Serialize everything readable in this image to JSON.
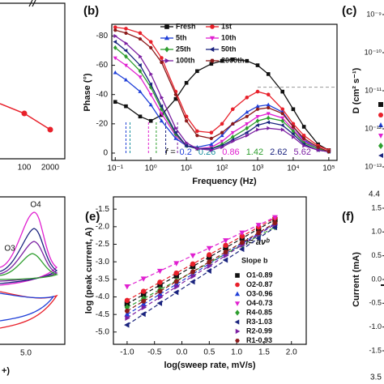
{
  "chart_data": [
    {
      "type": "line",
      "label": "(b)",
      "x_label": "Frequency (Hz)",
      "y_label": "Phase (°)",
      "xlog": true,
      "x": [
        0.1,
        0.2,
        0.5,
        1,
        2,
        5,
        10,
        20,
        50,
        100,
        200,
        500,
        1000,
        2000,
        5000,
        10000,
        20000,
        50000,
        100000
      ],
      "xlim": [
        0.08,
        170000
      ],
      "xticks": [
        {
          "value": 0.1,
          "label": "10⁻¹"
        },
        {
          "value": 1,
          "label": "10⁰"
        },
        {
          "value": 10,
          "label": "10¹"
        },
        {
          "value": 100,
          "label": "10²"
        },
        {
          "value": 1000,
          "label": "10³"
        },
        {
          "value": 10000,
          "label": "10⁴"
        },
        {
          "value": 100000,
          "label": "10⁵"
        }
      ],
      "ylim": [
        5,
        -88
      ],
      "yticks": [
        -80,
        -60,
        -40,
        -20,
        0
      ],
      "reference_line": -45,
      "series": [
        {
          "name": "Fresh",
          "color": "#111111",
          "marker": "square",
          "values": [
            -35,
            -32,
            -25,
            -22,
            -26,
            -37,
            -48,
            -56,
            -61,
            -63,
            -64,
            -63,
            -60,
            -54,
            -42,
            -30,
            -18,
            -6,
            -2
          ]
        },
        {
          "name": "1st",
          "color": "#e8202a",
          "marker": "circle",
          "values": [
            -86,
            -85,
            -82,
            -76,
            -65,
            -42,
            -25,
            -15,
            -14,
            -20,
            -30,
            -38,
            -42,
            -40,
            -30,
            -20,
            -12,
            -5,
            -2
          ]
        },
        {
          "name": "5th",
          "color": "#1f3fd8",
          "marker": "up",
          "values": [
            -55,
            -50,
            -42,
            -33,
            -22,
            -10,
            -5,
            -4,
            -6,
            -12,
            -20,
            -28,
            -32,
            -33,
            -28,
            -18,
            -9,
            -3,
            -1
          ]
        },
        {
          "name": "10th",
          "color": "#e020d0",
          "marker": "down",
          "values": [
            -65,
            -60,
            -52,
            -40,
            -27,
            -12,
            -5,
            -3,
            -4,
            -8,
            -14,
            -20,
            -25,
            -27,
            -24,
            -16,
            -8,
            -3,
            -1
          ]
        },
        {
          "name": "25th",
          "color": "#2e9e2e",
          "marker": "diamond",
          "values": [
            -72,
            -66,
            -56,
            -45,
            -30,
            -13,
            -5,
            -3,
            -3,
            -6,
            -11,
            -17,
            -22,
            -24,
            -22,
            -15,
            -7,
            -3,
            -1
          ]
        },
        {
          "name": "50th",
          "color": "#1a237e",
          "marker": "left",
          "values": [
            -76,
            -70,
            -60,
            -47,
            -32,
            -14,
            -5,
            -3,
            -3,
            -5,
            -9,
            -14,
            -19,
            -21,
            -19,
            -13,
            -6,
            -2,
            -1
          ]
        },
        {
          "name": "100th",
          "color": "#7b1fa2",
          "marker": "right",
          "values": [
            -80,
            -75,
            -66,
            -54,
            -38,
            -17,
            -7,
            -3,
            -2,
            -4,
            -8,
            -12,
            -16,
            -17,
            -16,
            -11,
            -5,
            -2,
            -1
          ]
        },
        {
          "name": "2000th",
          "color": "#8b1a1a",
          "marker": "hexagon",
          "values": [
            -84,
            -82,
            -78,
            -72,
            -62,
            -40,
            -22,
            -12,
            -10,
            -14,
            -20,
            -25,
            -30,
            -31,
            -27,
            -18,
            -10,
            -4,
            -1
          ]
        }
      ],
      "annotation": {
        "prefix": "f =",
        "values": [
          0.2,
          0.26,
          0.86,
          1.42,
          2.62,
          5.62
        ],
        "colors": [
          "#1f3fd8",
          "#1a8f9e",
          "#e020d0",
          "#2e9e2e",
          "#1a237e",
          "#7b1fa2"
        ]
      }
    },
    {
      "type": "scatter",
      "label": "(e)",
      "x_label": "log(sweep rate, mV/s)",
      "y_label": "log (peak current, A)",
      "formula": "i= aνᵇ",
      "legend_title": "Slope b",
      "x": [
        -1.0,
        -0.7,
        -0.4,
        -0.1,
        0.2,
        0.5,
        0.8,
        1.1,
        1.4,
        1.7
      ],
      "xlim": [
        -1.25,
        2.27
      ],
      "xticks": [
        {
          "value": -1,
          "label": "-1.0"
        },
        -0.5,
        {
          "value": 0,
          "label": "0.0"
        },
        0.5,
        {
          "value": 1,
          "label": "1.0"
        },
        1.5,
        {
          "value": 2,
          "label": "2.0"
        }
      ],
      "ylim": [
        -5.35,
        -1.15
      ],
      "yticks": [
        -1.5,
        {
          "value": -2,
          "label": "-2.0"
        },
        -2.5,
        {
          "value": -3,
          "label": "-3.0"
        },
        -3.5,
        {
          "value": -4,
          "label": "-4.0"
        },
        -4.5,
        {
          "value": -5,
          "label": "-5.0"
        }
      ],
      "series": [
        {
          "name": "O1-0.89",
          "color": "#111111",
          "marker": "square",
          "values": [
            -4.2,
            -3.93,
            -3.66,
            -3.4,
            -3.13,
            -2.87,
            -2.6,
            -2.33,
            -2.06,
            -1.8
          ]
        },
        {
          "name": "O2-0.87",
          "color": "#e8202a",
          "marker": "circle",
          "values": [
            -4.1,
            -3.84,
            -3.58,
            -3.32,
            -3.06,
            -2.8,
            -2.53,
            -2.27,
            -2.01,
            -1.75
          ]
        },
        {
          "name": "O3-0.96",
          "color": "#1f3fd8",
          "marker": "up",
          "values": [
            -4.5,
            -4.21,
            -3.92,
            -3.64,
            -3.35,
            -3.06,
            -2.77,
            -2.48,
            -2.2,
            -1.91
          ]
        },
        {
          "name": "O4-0.73",
          "color": "#e020d0",
          "marker": "down",
          "values": [
            -3.7,
            -3.48,
            -3.26,
            -3.04,
            -2.82,
            -2.61,
            -2.39,
            -2.17,
            -1.95,
            -1.73
          ]
        },
        {
          "name": "R4-0.85",
          "color": "#2e9e2e",
          "marker": "diamond",
          "values": [
            -4.3,
            -4.05,
            -3.79,
            -3.54,
            -3.28,
            -3.03,
            -2.77,
            -2.52,
            -2.26,
            -2.01
          ]
        },
        {
          "name": "R3-1.03",
          "color": "#1a237e",
          "marker": "left",
          "values": [
            -4.8,
            -4.49,
            -4.18,
            -3.87,
            -3.57,
            -3.26,
            -2.95,
            -2.64,
            -2.33,
            -2.02
          ]
        },
        {
          "name": "R2-0.99",
          "color": "#7b1fa2",
          "marker": "right",
          "values": [
            -4.6,
            -4.3,
            -4.01,
            -3.71,
            -3.41,
            -3.12,
            -2.82,
            -2.52,
            -2.22,
            -1.93
          ]
        },
        {
          "name": "R1-0.93",
          "color": "#8b1a1a",
          "marker": "hexagon",
          "values": [
            -4.4,
            -4.12,
            -3.84,
            -3.56,
            -3.28,
            -3.0,
            -2.72,
            -2.45,
            -2.17,
            -1.89
          ]
        }
      ]
    },
    {
      "type": "axis",
      "label": "(c)",
      "y_label": "D (cm² s⁻¹)",
      "ylog": true,
      "ylim": [
        1e-13,
        1e-09
      ],
      "yticks": [
        {
          "value": 1e-09,
          "label": "10⁻⁹"
        },
        {
          "value": 1e-10,
          "label": "10⁻¹⁰"
        },
        {
          "value": 1e-11,
          "label": "10⁻¹¹"
        },
        {
          "value": 1e-12,
          "label": "10⁻¹²"
        },
        {
          "value": 1e-13,
          "label": "10⁻¹³"
        }
      ],
      "categories": [
        "4.4"
      ]
    },
    {
      "type": "axis",
      "label": "(f)",
      "y_label": "Current (mA)",
      "ylim": [
        -1.5,
        1.5
      ],
      "yticks": [
        1.5,
        {
          "value": 1,
          "label": "1.0"
        },
        0.5,
        {
          "value": 0,
          "label": "0.0"
        },
        -0.5,
        {
          "value": -1,
          "label": "-1.0"
        },
        -1.5
      ],
      "categories": [
        "3.5"
      ]
    }
  ],
  "fragments": {
    "a": {
      "xtick_labels": [
        "100",
        "2000"
      ]
    },
    "d": {
      "peak_labels": [
        "O4",
        "O3"
      ],
      "xtick_labels": [
        "5.0"
      ],
      "x_label_tail": "+)"
    }
  }
}
